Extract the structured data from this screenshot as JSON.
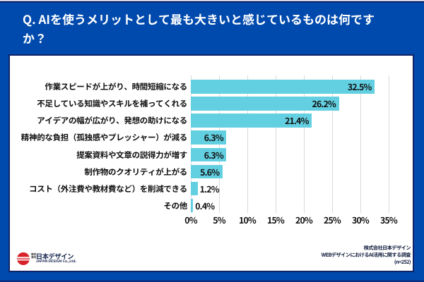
{
  "page": {
    "title": "Q. AIを使うメリットとして最も大きいと感じているものは何ですか？"
  },
  "chart_data": {
    "type": "bar",
    "orientation": "horizontal",
    "categories": [
      "作業スピードが上がり、時間短縮になる",
      "不足している知識やスキルを補ってくれる",
      "アイデアの幅が広がり、発想の助けになる",
      "精神的な負担（孤独感やプレッシャー）が減る",
      "提案資料や文章の説得力が増す",
      "制作物のクオリティが上がる",
      "コスト（外注費や教材費など）を削減できる",
      "その他"
    ],
    "values": [
      32.5,
      26.2,
      21.4,
      6.3,
      6.3,
      5.6,
      1.2,
      0.4
    ],
    "value_labels": [
      "32.5%",
      "26.2%",
      "21.4%",
      "6.3%",
      "6.3%",
      "5.6%",
      "1.2%",
      "0.4%"
    ],
    "xlim": [
      0,
      35
    ],
    "xtick_labels": [
      "0%",
      "5%",
      "10%",
      "15%",
      "20%",
      "25%",
      "30%",
      "35%"
    ],
    "grid": true,
    "legend": false,
    "bar_color": "#63d0e2"
  },
  "footer": {
    "logo": {
      "company_prefix": "株式会社",
      "company_prefix_line1": "株式",
      "company_prefix_line2": "会社",
      "company_name": "日本デザイン",
      "company_name_en": "JAPAN DESIGN Co.,Ltd.",
      "mark": "red-circle-stripes"
    },
    "source": {
      "line1": "株式会社日本デザイン",
      "line2": "WEBデザインにおけるAI活用に関する調査",
      "line3": "(n=252)"
    }
  },
  "colors": {
    "background": "#004aad",
    "card": "#ffffff",
    "card_border": "#0f2366",
    "bar": "#63d0e2",
    "gridline": "#d9d9d9",
    "title_text": "#ffffff",
    "label_text": "#101010",
    "source_text": "#101c3c",
    "logo_red": "#d7222a"
  }
}
